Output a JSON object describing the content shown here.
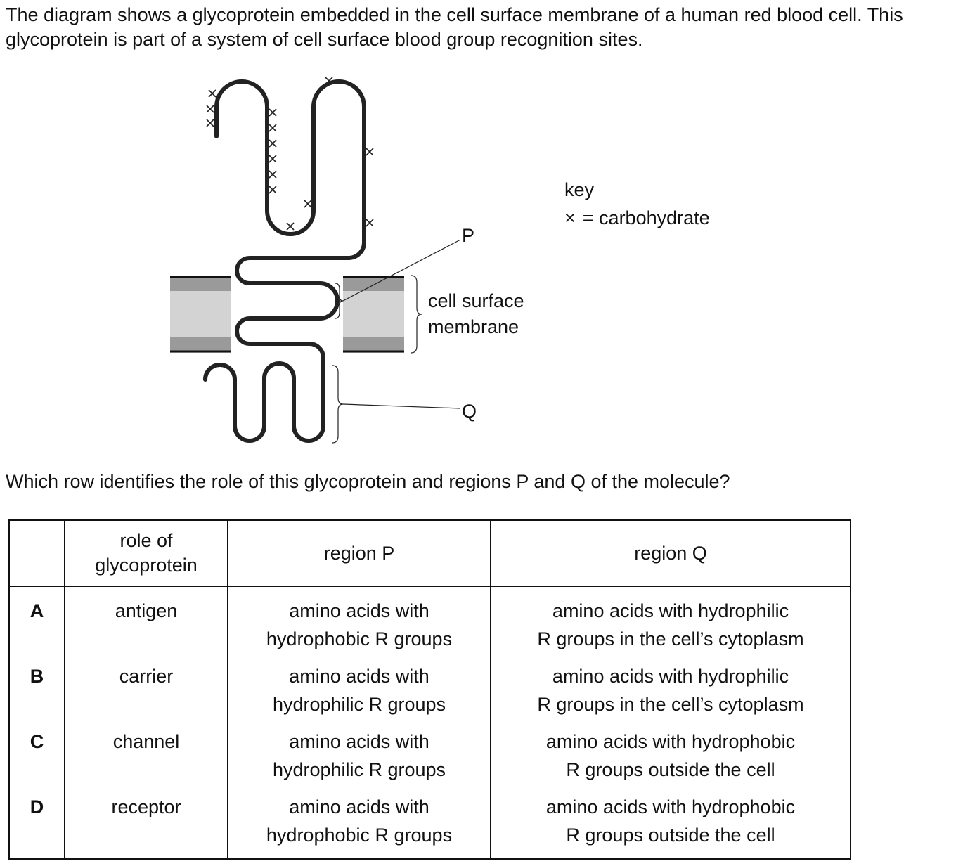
{
  "intro": "The diagram shows a glycoprotein embedded in the cell surface membrane of a human red blood cell. This glycoprotein is part of a system of cell surface blood group recognition sites.",
  "diagram": {
    "key_title": "key",
    "key_symbol": "×",
    "key_text": "= carbohydrate",
    "membrane_label_line1": "cell surface",
    "membrane_label_line2": "membrane",
    "label_p": "P",
    "label_q": "Q"
  },
  "question": "Which row identifies the role of this glycoprotein and regions P and Q of the molecule?",
  "table": {
    "headers": {
      "role_line1": "role of",
      "role_line2": "glycoprotein",
      "region_p": "region P",
      "region_q": "region Q"
    },
    "rows": [
      {
        "letter": "A",
        "role": "antigen",
        "p1": "amino acids with",
        "p2": "hydrophobic R groups",
        "q1": "amino acids with hydrophilic",
        "q2": "R groups in the cell’s cytoplasm"
      },
      {
        "letter": "B",
        "role": "carrier",
        "p1": "amino acids with",
        "p2": "hydrophilic R groups",
        "q1": "amino acids with hydrophilic",
        "q2": "R groups in the cell’s cytoplasm"
      },
      {
        "letter": "C",
        "role": "channel",
        "p1": "amino acids with",
        "p2": "hydrophilic R groups",
        "q1": "amino acids with hydrophobic",
        "q2": "R groups outside the cell"
      },
      {
        "letter": "D",
        "role": "receptor",
        "p1": "amino acids with",
        "p2": "hydrophobic R groups",
        "q1": "amino acids with hydrophobic",
        "q2": "R groups outside the cell"
      }
    ]
  }
}
